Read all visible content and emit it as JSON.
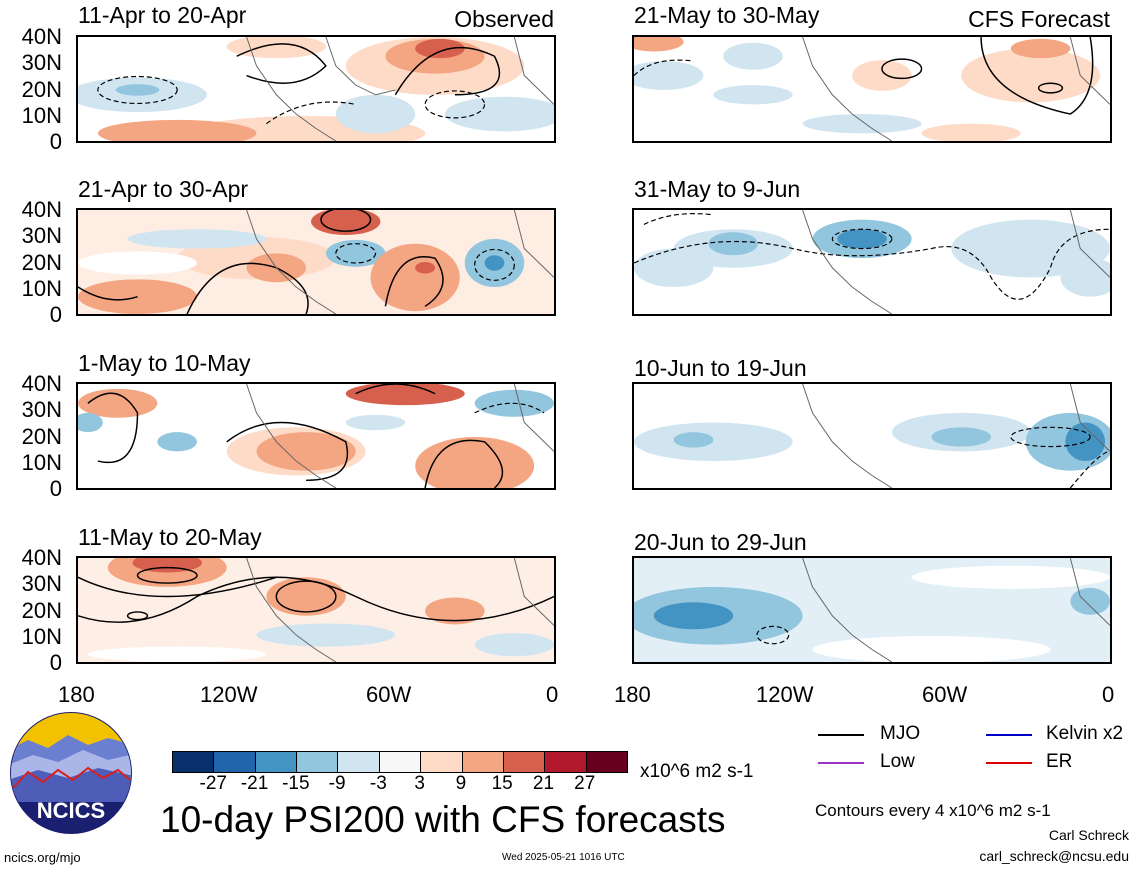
{
  "panels_left": [
    {
      "title": "11-Apr to 20-Apr",
      "label": "Observed"
    },
    {
      "title": "21-Apr to 30-Apr",
      "label": ""
    },
    {
      "title": "1-May to 10-May",
      "label": ""
    },
    {
      "title": "11-May to 20-May",
      "label": ""
    }
  ],
  "panels_right": [
    {
      "title": "21-May to 30-May",
      "label": "CFS Forecast"
    },
    {
      "title": "31-May to 9-Jun",
      "label": ""
    },
    {
      "title": "10-Jun to 19-Jun",
      "label": ""
    },
    {
      "title": "20-Jun to 29-Jun",
      "label": ""
    }
  ],
  "yticks": [
    "40N",
    "30N",
    "20N",
    "10N",
    "0"
  ],
  "xticks": [
    "180",
    "120W",
    "60W",
    "0"
  ],
  "colorbar": {
    "labels": [
      "-27",
      "-21",
      "-15",
      "-9",
      "-3",
      "3",
      "9",
      "15",
      "21",
      "27"
    ],
    "colors": [
      "#08306b",
      "#2166ac",
      "#4393c3",
      "#92c5de",
      "#d1e5f0",
      "#f7f7f7",
      "#fddbc7",
      "#f4a582",
      "#d6604d",
      "#b2182b",
      "#67001f"
    ],
    "units": "x10^6 m2 s-1"
  },
  "legend": [
    {
      "label": "MJO",
      "color": "#000000"
    },
    {
      "label": "Kelvin x2",
      "color": "#0000cc"
    },
    {
      "label": "Low",
      "color": "#9933cc"
    },
    {
      "label": "ER",
      "color": "#dd0000"
    }
  ],
  "main_title": "10-day PSI200 with CFS forecasts",
  "contour_note": "Contours every 4 x10^6 m2 s-1",
  "author": "Carl Schreck",
  "email": "carl_schreck@ncsu.edu",
  "website": "ncics.org/mjo",
  "timestamp": "Wed 2025-05-21 1016 UTC",
  "logo_text": "NCICS",
  "chart_data": [
    {
      "type": "heatmap",
      "title": "11-Apr to 20-Apr",
      "subtitle": "Observed",
      "xlabel": "",
      "ylabel": "",
      "x_range": [
        "180",
        "0"
      ],
      "y_range": [
        "0",
        "40N"
      ]
    },
    {
      "type": "heatmap",
      "title": "21-Apr to 30-Apr",
      "xlabel": "",
      "ylabel": ""
    },
    {
      "type": "heatmap",
      "title": "1-May to 10-May",
      "xlabel": "",
      "ylabel": ""
    },
    {
      "type": "heatmap",
      "title": "11-May to 20-May",
      "xlabel": "",
      "ylabel": ""
    },
    {
      "type": "heatmap",
      "title": "21-May to 30-May",
      "subtitle": "CFS Forecast",
      "xlabel": "",
      "ylabel": ""
    },
    {
      "type": "heatmap",
      "title": "31-May to 9-Jun",
      "xlabel": "",
      "ylabel": ""
    },
    {
      "type": "heatmap",
      "title": "10-Jun to 19-Jun",
      "xlabel": "",
      "ylabel": ""
    },
    {
      "type": "heatmap",
      "title": "20-Jun to 29-Jun",
      "xlabel": "",
      "ylabel": ""
    }
  ]
}
